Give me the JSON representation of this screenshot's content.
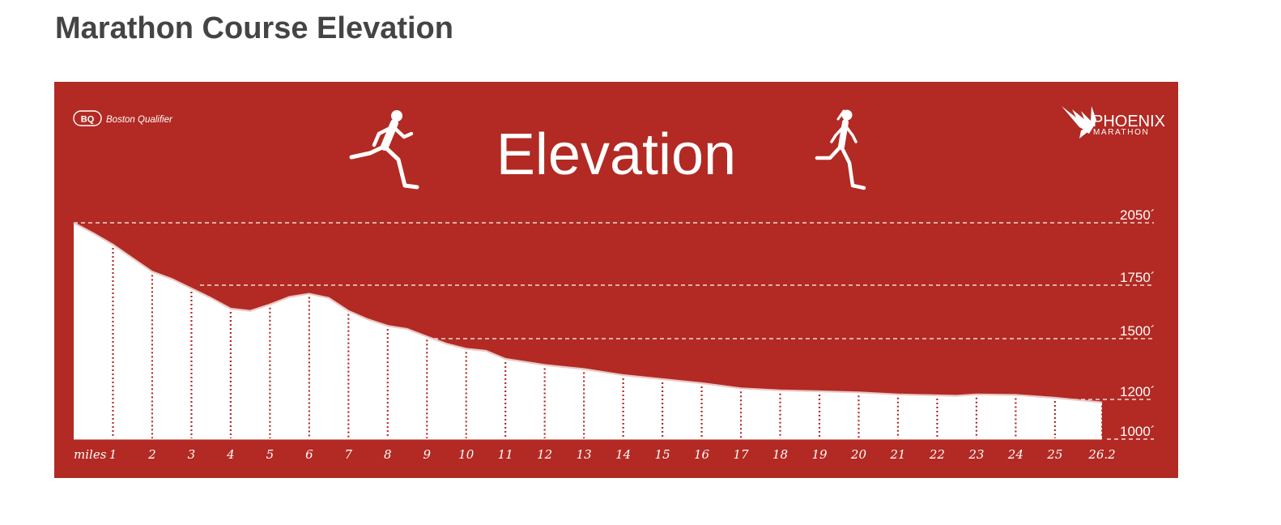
{
  "page": {
    "title": "Marathon Course Elevation"
  },
  "colors": {
    "panel": "#b22a23",
    "fill": "#ffffff",
    "ticks": "#b22a23"
  },
  "icons": {
    "left": "male-runner-icon",
    "right": "female-runner-icon",
    "logo": "phoenix-bird-icon"
  },
  "badge": {
    "code": "BQ",
    "text": "Boston Qualifier"
  },
  "logo": {
    "name": "PHOENIX",
    "sub": "MARATHON"
  },
  "chart_data": {
    "type": "area",
    "title": "Elevation",
    "xlabel": "miles",
    "ylabel": "",
    "x_ticks": [
      "1",
      "2",
      "3",
      "4",
      "5",
      "6",
      "7",
      "8",
      "9",
      "10",
      "11",
      "12",
      "13",
      "14",
      "15",
      "16",
      "17",
      "18",
      "19",
      "20",
      "21",
      "22",
      "23",
      "24",
      "25",
      "26.2"
    ],
    "x_tick_values": [
      1,
      2,
      3,
      4,
      5,
      6,
      7,
      8,
      9,
      10,
      11,
      12,
      13,
      14,
      15,
      16,
      17,
      18,
      19,
      20,
      21,
      22,
      23,
      24,
      25,
      26.2
    ],
    "y_reference_lines": [
      {
        "label": "2050´",
        "value": 2050
      },
      {
        "label": "1750´",
        "value": 1750
      },
      {
        "label": "1500´",
        "value": 1500
      },
      {
        "label": "1200´",
        "value": 1200
      },
      {
        "label": "1000´",
        "value": 1000
      }
    ],
    "xlim": [
      0,
      26.2
    ],
    "grid": "dashed reference lines",
    "series": [
      {
        "x": [
          0,
          0.5,
          1,
          1.5,
          2,
          2.5,
          3,
          3.5,
          4,
          4.5,
          5,
          5.5,
          6,
          6.5,
          7,
          7.5,
          8,
          8.5,
          9,
          9.5,
          10,
          10.5,
          11,
          12,
          13,
          14,
          15,
          16,
          17,
          18,
          19,
          20,
          21,
          22,
          22.5,
          23,
          24,
          25,
          26.2
        ],
        "y": [
          2050,
          2000,
          1945,
          1880,
          1815,
          1780,
          1735,
          1690,
          1640,
          1630,
          1660,
          1695,
          1710,
          1690,
          1630,
          1590,
          1560,
          1545,
          1510,
          1475,
          1450,
          1440,
          1400,
          1370,
          1350,
          1320,
          1300,
          1280,
          1255,
          1245,
          1240,
          1235,
          1225,
          1220,
          1218,
          1225,
          1222,
          1208,
          1185
        ]
      }
    ]
  }
}
